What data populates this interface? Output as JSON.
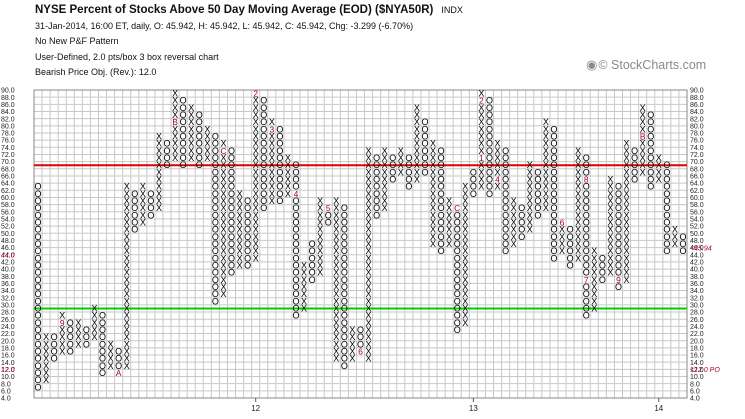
{
  "header": {
    "title": "NYSE Percent of Stocks Above 50 Day Moving Average (EOD) ($NYA50R)",
    "exchange": "INDX",
    "quote": "31-Jan-2014, 16:00 ET, daily, O: 45.942, H: 45.942, L: 45.942, C: 45.942, Chg: -3.299 (-6.70%)",
    "pattern": "No New P&F Pattern",
    "scaling": "User-Defined, 2.0 pts/box 3 box reversal chart",
    "objective": "Bearish Price Obj. (Rev.): 12.0"
  },
  "watermark": {
    "icon": "stockcharts-logo-icon",
    "text": "© StockCharts.com"
  },
  "colors": {
    "grid": "#c8c8c8",
    "box": "#000000",
    "month": "#aa0022",
    "resistance": "#e00000",
    "support": "#00cc00"
  },
  "chart_data": {
    "type": "point-and-figure",
    "box_size": 2,
    "reversal": 3,
    "ylim": [
      4,
      90
    ],
    "y_ticks": [
      "4.0",
      "6.0",
      "8.0",
      "10.0",
      "12.0",
      "14.0",
      "16.0",
      "18.0",
      "20.0",
      "22.0",
      "24.0",
      "26.0",
      "28.0",
      "30.0",
      "32.0",
      "34.0",
      "36.0",
      "38.0",
      "40.0",
      "42.0",
      "44.0",
      "46.0",
      "48.0",
      "50.0",
      "52.0",
      "54.0",
      "56.0",
      "58.0",
      "60.0",
      "62.0",
      "64.0",
      "66.0",
      "68.0",
      "70.0",
      "72.0",
      "74.0",
      "76.0",
      "78.0",
      "80.0",
      "82.0",
      "84.0",
      "86.0",
      "88.0",
      "90.0"
    ],
    "x_labels": [
      {
        "label": "12",
        "column": 27
      },
      {
        "label": "13",
        "column": 54
      },
      {
        "label": "14",
        "column": 77
      }
    ],
    "columns": [
      {
        "type": "O",
        "low": 6,
        "high": 62
      },
      {
        "type": "X",
        "low": 8,
        "high": 20
      },
      {
        "type": "O",
        "low": 14,
        "high": 20
      },
      {
        "type": "X",
        "low": 16,
        "high": 26,
        "marks": [
          {
            "v": 24,
            "t": "9"
          }
        ]
      },
      {
        "type": "O",
        "low": 16,
        "high": 24
      },
      {
        "type": "X",
        "low": 18,
        "high": 24
      },
      {
        "type": "O",
        "low": 18,
        "high": 22
      },
      {
        "type": "X",
        "low": 20,
        "high": 28
      },
      {
        "type": "O",
        "low": 10,
        "high": 26
      },
      {
        "type": "X",
        "low": 12,
        "high": 18
      },
      {
        "type": "O",
        "low": 10,
        "high": 16,
        "marks": [
          {
            "v": 10,
            "t": "A"
          }
        ]
      },
      {
        "type": "X",
        "low": 12,
        "high": 62
      },
      {
        "type": "O",
        "low": 50,
        "high": 60
      },
      {
        "type": "X",
        "low": 52,
        "high": 62
      },
      {
        "type": "O",
        "low": 54,
        "high": 60
      },
      {
        "type": "X",
        "low": 56,
        "high": 76
      },
      {
        "type": "O",
        "low": 68,
        "high": 74
      },
      {
        "type": "X",
        "low": 70,
        "high": 88,
        "marks": [
          {
            "v": 80,
            "t": "B"
          }
        ]
      },
      {
        "type": "O",
        "low": 68,
        "high": 86
      },
      {
        "type": "X",
        "low": 70,
        "high": 84
      },
      {
        "type": "O",
        "low": 68,
        "high": 82
      },
      {
        "type": "X",
        "low": 70,
        "high": 78
      },
      {
        "type": "O",
        "low": 30,
        "high": 76
      },
      {
        "type": "X",
        "low": 32,
        "high": 74,
        "marks": [
          {
            "v": 72,
            "t": "C"
          }
        ]
      },
      {
        "type": "O",
        "low": 38,
        "high": 72
      },
      {
        "type": "X",
        "low": 40,
        "high": 60
      },
      {
        "type": "O",
        "low": 40,
        "high": 58
      },
      {
        "type": "X",
        "low": 42,
        "high": 88,
        "marks": [
          {
            "v": 88,
            "t": "2"
          }
        ]
      },
      {
        "type": "O",
        "low": 56,
        "high": 86
      },
      {
        "type": "X",
        "low": 58,
        "high": 80,
        "marks": [
          {
            "v": 78,
            "t": "3"
          }
        ]
      },
      {
        "type": "O",
        "low": 58,
        "high": 78
      },
      {
        "type": "X",
        "low": 60,
        "high": 70
      },
      {
        "type": "O",
        "low": 26,
        "high": 68,
        "marks": [
          {
            "v": 60,
            "t": "4"
          }
        ]
      },
      {
        "type": "X",
        "low": 28,
        "high": 40
      },
      {
        "type": "O",
        "low": 36,
        "high": 46
      },
      {
        "type": "X",
        "low": 38,
        "high": 58
      },
      {
        "type": "O",
        "low": 52,
        "high": 56,
        "marks": [
          {
            "v": 56,
            "t": "5"
          }
        ]
      },
      {
        "type": "X",
        "low": 14,
        "high": 58
      },
      {
        "type": "O",
        "low": 12,
        "high": 56
      },
      {
        "type": "X",
        "low": 14,
        "high": 22
      },
      {
        "type": "O",
        "low": 16,
        "high": 22,
        "marks": [
          {
            "v": 16,
            "t": "6"
          }
        ]
      },
      {
        "type": "X",
        "low": 14,
        "high": 72
      },
      {
        "type": "O",
        "low": 54,
        "high": 70
      },
      {
        "type": "X",
        "low": 56,
        "high": 72
      },
      {
        "type": "O",
        "low": 64,
        "high": 70
      },
      {
        "type": "X",
        "low": 66,
        "high": 72
      },
      {
        "type": "O",
        "low": 62,
        "high": 70
      },
      {
        "type": "X",
        "low": 64,
        "high": 84
      },
      {
        "type": "O",
        "low": 66,
        "high": 80
      },
      {
        "type": "X",
        "low": 46,
        "high": 74
      },
      {
        "type": "O",
        "low": 44,
        "high": 72
      },
      {
        "type": "X",
        "low": 46,
        "high": 58
      },
      {
        "type": "O",
        "low": 22,
        "high": 56,
        "marks": [
          {
            "v": 56,
            "t": "C"
          }
        ]
      },
      {
        "type": "X",
        "low": 24,
        "high": 62
      },
      {
        "type": "O",
        "low": 60,
        "high": 66
      },
      {
        "type": "X",
        "low": 62,
        "high": 88,
        "marks": [
          {
            "v": 70,
            "t": "1"
          },
          {
            "v": 86,
            "t": "2"
          }
        ]
      },
      {
        "type": "O",
        "low": 60,
        "high": 86
      },
      {
        "type": "X",
        "low": 62,
        "high": 74,
        "marks": [
          {
            "v": 64,
            "t": "4"
          }
        ]
      },
      {
        "type": "O",
        "low": 44,
        "high": 72
      },
      {
        "type": "X",
        "low": 46,
        "high": 58
      },
      {
        "type": "O",
        "low": 48,
        "high": 56
      },
      {
        "type": "X",
        "low": 50,
        "high": 68
      },
      {
        "type": "O",
        "low": 54,
        "high": 66
      },
      {
        "type": "X",
        "low": 56,
        "high": 80
      },
      {
        "type": "O",
        "low": 42,
        "high": 78
      },
      {
        "type": "X",
        "low": 44,
        "high": 52,
        "marks": [
          {
            "v": 52,
            "t": "6"
          }
        ]
      },
      {
        "type": "O",
        "low": 40,
        "high": 50
      },
      {
        "type": "X",
        "low": 42,
        "high": 72
      },
      {
        "type": "O",
        "low": 26,
        "high": 70,
        "marks": [
          {
            "v": 36,
            "t": "7"
          },
          {
            "v": 64,
            "t": "8"
          }
        ]
      },
      {
        "type": "X",
        "low": 28,
        "high": 44
      },
      {
        "type": "O",
        "low": 36,
        "high": 42
      },
      {
        "type": "X",
        "low": 38,
        "high": 64
      },
      {
        "type": "O",
        "low": 34,
        "high": 62,
        "marks": [
          {
            "v": 36,
            "t": "9"
          }
        ]
      },
      {
        "type": "X",
        "low": 36,
        "high": 74
      },
      {
        "type": "O",
        "low": 64,
        "high": 72
      },
      {
        "type": "X",
        "low": 66,
        "high": 84,
        "marks": [
          {
            "v": 76,
            "t": "B"
          }
        ]
      },
      {
        "type": "O",
        "low": 62,
        "high": 82
      },
      {
        "type": "X",
        "low": 64,
        "high": 70
      },
      {
        "type": "O",
        "low": 44,
        "high": 68
      },
      {
        "type": "X",
        "low": 46,
        "high": 50
      },
      {
        "type": "O",
        "low": 44,
        "high": 48
      }
    ],
    "lines": [
      {
        "name": "resistance-line",
        "value": 69,
        "color": "#e00000"
      },
      {
        "name": "support-line",
        "value": 29,
        "color": "#00cc00"
      }
    ],
    "left_markers": [
      {
        "text": "44.0",
        "value": 44
      },
      {
        "text": "12.0",
        "value": 12
      }
    ],
    "right_markers": [
      {
        "text": "45.94",
        "value": 45.94
      },
      {
        "text": "12.0 PO",
        "value": 12
      }
    ]
  }
}
